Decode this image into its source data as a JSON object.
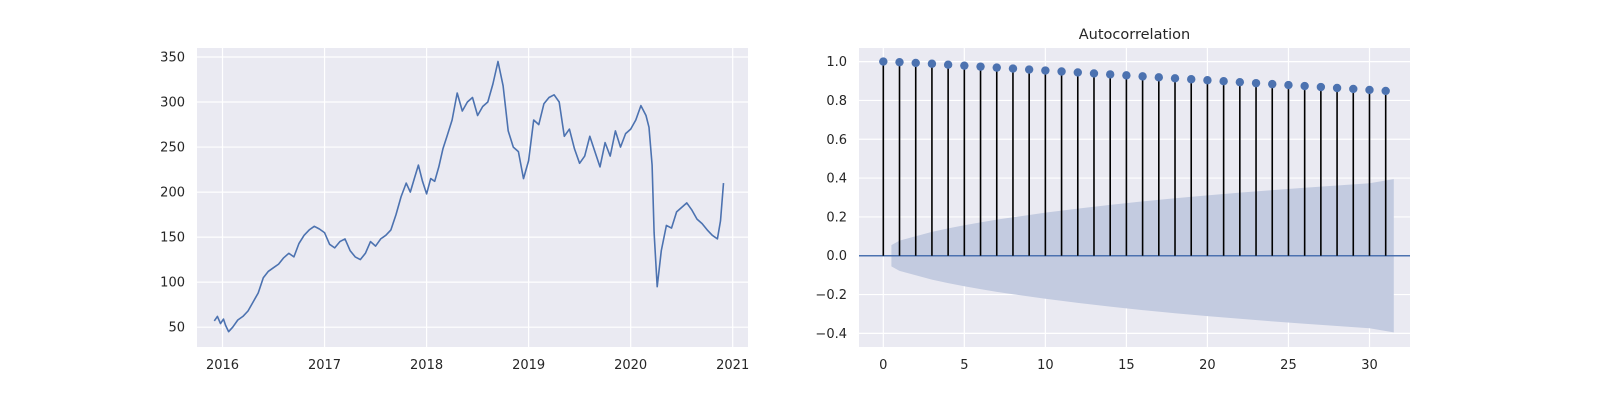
{
  "chart_data": [
    {
      "type": "line",
      "title": "",
      "xlabel": "",
      "ylabel": "",
      "xlim": [
        2015.75,
        2021.15
      ],
      "ylim": [
        28,
        360
      ],
      "xticks": [
        2016,
        2017,
        2018,
        2019,
        2020,
        2021
      ],
      "xtick_labels": [
        "2016",
        "2017",
        "2018",
        "2019",
        "2020",
        "2021"
      ],
      "yticks": [
        50,
        100,
        150,
        200,
        250,
        300,
        350
      ],
      "ytick_labels": [
        "50",
        "100",
        "150",
        "200",
        "250",
        "300",
        "350"
      ],
      "grid": true,
      "series": [
        {
          "color": "#4c72b0",
          "x": [
            2015.92,
            2015.95,
            2015.98,
            2016.01,
            2016.03,
            2016.06,
            2016.1,
            2016.15,
            2016.2,
            2016.25,
            2016.3,
            2016.35,
            2016.4,
            2016.45,
            2016.5,
            2016.55,
            2016.6,
            2016.65,
            2016.7,
            2016.75,
            2016.8,
            2016.85,
            2016.9,
            2016.95,
            2017.0,
            2017.05,
            2017.1,
            2017.15,
            2017.2,
            2017.25,
            2017.3,
            2017.35,
            2017.4,
            2017.45,
            2017.5,
            2017.55,
            2017.6,
            2017.65,
            2017.7,
            2017.75,
            2017.8,
            2017.84,
            2017.88,
            2017.92,
            2017.96,
            2018.0,
            2018.04,
            2018.08,
            2018.12,
            2018.16,
            2018.2,
            2018.25,
            2018.3,
            2018.35,
            2018.4,
            2018.45,
            2018.5,
            2018.55,
            2018.6,
            2018.65,
            2018.7,
            2018.75,
            2018.8,
            2018.85,
            2018.9,
            2018.95,
            2019.0,
            2019.05,
            2019.1,
            2019.15,
            2019.2,
            2019.25,
            2019.3,
            2019.35,
            2019.4,
            2019.45,
            2019.5,
            2019.55,
            2019.6,
            2019.65,
            2019.7,
            2019.75,
            2019.8,
            2019.85,
            2019.9,
            2019.95,
            2020.0,
            2020.05,
            2020.1,
            2020.15,
            2020.18,
            2020.21,
            2020.23,
            2020.26,
            2020.3,
            2020.35,
            2020.4,
            2020.45,
            2020.5,
            2020.55,
            2020.6,
            2020.65,
            2020.7,
            2020.75,
            2020.8,
            2020.85,
            2020.88,
            2020.91
          ],
          "y": [
            57,
            62,
            54,
            59,
            52,
            45,
            50,
            58,
            62,
            68,
            78,
            88,
            105,
            112,
            116,
            120,
            127,
            132,
            128,
            143,
            152,
            158,
            162,
            159,
            155,
            142,
            138,
            145,
            148,
            135,
            128,
            125,
            132,
            145,
            140,
            148,
            152,
            158,
            175,
            195,
            210,
            200,
            215,
            230,
            212,
            198,
            215,
            212,
            228,
            248,
            262,
            280,
            310,
            290,
            300,
            305,
            285,
            295,
            300,
            320,
            345,
            318,
            268,
            250,
            245,
            215,
            235,
            280,
            275,
            298,
            305,
            308,
            300,
            262,
            270,
            248,
            232,
            240,
            262,
            245,
            228,
            255,
            240,
            268,
            250,
            265,
            270,
            280,
            296,
            285,
            272,
            230,
            155,
            95,
            135,
            163,
            160,
            178,
            183,
            188,
            180,
            170,
            165,
            158,
            152,
            148,
            168,
            210
          ]
        }
      ]
    },
    {
      "type": "stem",
      "title": "Autocorrelation",
      "xlabel": "",
      "ylabel": "",
      "xlim": [
        -1.5,
        32.5
      ],
      "ylim": [
        -0.47,
        1.07
      ],
      "xticks": [
        0,
        5,
        10,
        15,
        20,
        25,
        30
      ],
      "xtick_labels": [
        "0",
        "5",
        "10",
        "15",
        "20",
        "25",
        "30"
      ],
      "yticks": [
        -0.4,
        -0.2,
        0.0,
        0.2,
        0.4,
        0.6,
        0.8,
        1.0
      ],
      "ytick_labels": [
        "−0.4",
        "−0.2",
        "0.0",
        "0.2",
        "0.4",
        "0.6",
        "0.8",
        "1.0"
      ],
      "grid": true,
      "lags": [
        0,
        1,
        2,
        3,
        4,
        5,
        6,
        7,
        8,
        9,
        10,
        11,
        12,
        13,
        14,
        15,
        16,
        17,
        18,
        19,
        20,
        21,
        22,
        23,
        24,
        25,
        26,
        27,
        28,
        29,
        30,
        31
      ],
      "acf": [
        1.0,
        0.997,
        0.993,
        0.989,
        0.984,
        0.979,
        0.974,
        0.969,
        0.964,
        0.959,
        0.954,
        0.949,
        0.944,
        0.939,
        0.934,
        0.929,
        0.924,
        0.919,
        0.914,
        0.909,
        0.904,
        0.899,
        0.894,
        0.889,
        0.884,
        0.879,
        0.874,
        0.869,
        0.864,
        0.859,
        0.854,
        0.849
      ],
      "confint_lags": [
        0.5,
        1,
        2,
        3,
        4,
        5,
        6,
        7,
        8,
        9,
        10,
        12,
        14,
        16,
        18,
        20,
        22,
        24,
        26,
        28,
        30,
        31.5
      ],
      "confint": [
        0.055,
        0.078,
        0.1,
        0.123,
        0.141,
        0.157,
        0.172,
        0.186,
        0.198,
        0.21,
        0.222,
        0.243,
        0.262,
        0.28,
        0.296,
        0.311,
        0.325,
        0.338,
        0.35,
        0.362,
        0.373,
        0.395
      ],
      "stem_color": "#000000",
      "marker_color": "#4c72b0",
      "band_color": "#c3cbe0"
    }
  ],
  "style": {
    "axes_background": "#eaeaf2",
    "grid_color": "#ffffff",
    "zero_line_color": "#4c72b0"
  }
}
